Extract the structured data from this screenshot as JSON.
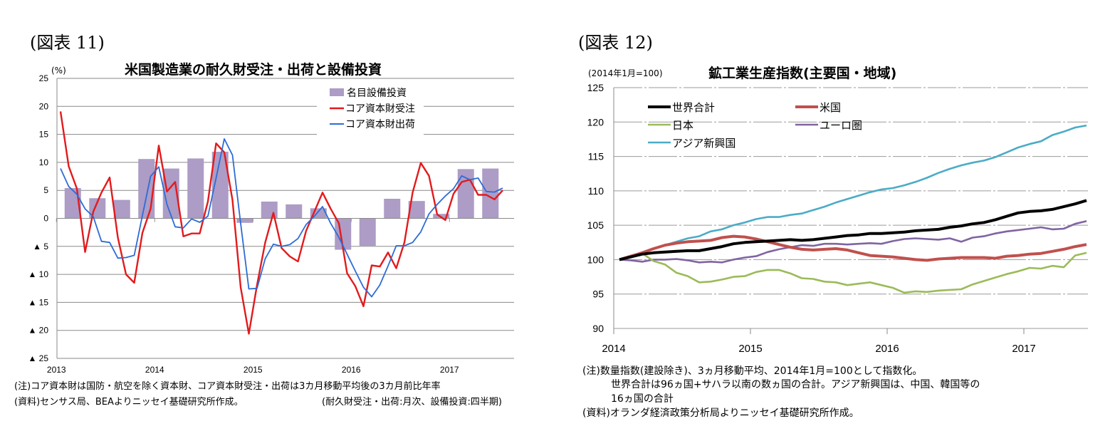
{
  "left": {
    "figure_label": "(図表 11)",
    "unit": "(%)",
    "notes": [
      "(注)コア資本財は国防・航空を除く資本財、コア資本財受注・出荷は3カ月移動平均後の3カ月前比年率",
      "(資料)センサス局、BEAよりニッセイ基礎研究所作成。"
    ],
    "frequency_note": "(耐久財受注・出荷:月次、設備投資:四半期)"
  },
  "right": {
    "figure_label": "(図表 12)",
    "unit": "(2014年1月=100)",
    "notes": [
      "(注)数量指数(建設除き)、3ヵ月移動平均、2014年1月=100として指数化。",
      "世界合計は96ヵ国+サハラ以南の数ヵ国の合計。アジア新興国は、中国、韓国等の",
      "16ヵ国の合計",
      "(資料)オランダ経済政策分析局よりニッセイ基礎研究所作成。"
    ]
  },
  "chart_data": [
    {
      "type": "bar+line",
      "title": "米国製造業の耐久財受注・出荷と設備投資",
      "ylabel": "(%)",
      "ylim": [
        -25,
        25
      ],
      "yticks": [
        25,
        20,
        15,
        10,
        5,
        0,
        -5,
        -10,
        -15,
        -20,
        -25
      ],
      "ytick_labels": [
        "25",
        "20",
        "15",
        "10",
        "5",
        "0",
        "▲ 5",
        "▲ 10",
        "▲ 15",
        "▲ 20",
        "▲ 25"
      ],
      "xtick_labels": [
        "2013",
        "2014",
        "2015",
        "2016",
        "2017"
      ],
      "grid": "horizontal",
      "legend_position": "top-right",
      "bars": {
        "name": "名目設備投資",
        "color": "#ac9cc6",
        "quarters": [
          "2013Q1",
          "2013Q2",
          "2013Q3",
          "2013Q4",
          "2014Q1",
          "2014Q2",
          "2014Q3",
          "2014Q4",
          "2015Q1",
          "2015Q2",
          "2015Q3",
          "2015Q4",
          "2016Q1",
          "2016Q2",
          "2016Q3",
          "2016Q4",
          "2017Q1",
          "2017Q2"
        ],
        "values": [
          5.4,
          3.6,
          3.3,
          10.6,
          8.9,
          10.7,
          11.9,
          -0.8,
          3.0,
          2.5,
          1.8,
          -5.6,
          -4.9,
          3.5,
          3.1,
          0.8,
          8.8,
          8.9
        ]
      },
      "x_start": "2013-01",
      "series": [
        {
          "name": "コア資本財受注",
          "color": "#e31a1c",
          "values": [
            19.1,
            9.3,
            5.3,
            -6.0,
            1.2,
            4.6,
            7.3,
            -3.4,
            -10.0,
            -11.5,
            -2.6,
            1.7,
            13.0,
            4.8,
            6.5,
            -3.2,
            -2.7,
            -2.7,
            3.0,
            13.4,
            11.8,
            3.3,
            -12.3,
            -20.6,
            -11.9,
            -4.3,
            1.0,
            -5.3,
            -6.8,
            -7.7,
            -2.2,
            1.2,
            4.6,
            1.7,
            -0.9,
            -9.8,
            -12.1,
            -15.7,
            -8.4,
            -8.6,
            -6.1,
            -8.9,
            -4.3,
            4.6,
            9.9,
            7.6,
            0.7,
            -0.3,
            4.4,
            6.5,
            6.9,
            4.2,
            4.2,
            3.4,
            5.0
          ]
        },
        {
          "name": "コア資本財出荷",
          "color": "#2d6cd6",
          "values": [
            8.9,
            5.7,
            4.3,
            1.7,
            0.3,
            -4.1,
            -4.3,
            -7.1,
            -7.0,
            -6.6,
            0.5,
            7.5,
            9.2,
            2.5,
            -1.5,
            -1.7,
            -0.1,
            -0.7,
            0.4,
            7.2,
            14.2,
            11.3,
            -0.9,
            -12.6,
            -12.5,
            -7.2,
            -4.6,
            -5.0,
            -4.7,
            -3.6,
            -1.1,
            0.4,
            2.1,
            -0.9,
            -3.4,
            -6.4,
            -9.4,
            -12.3,
            -14.0,
            -11.9,
            -8.5,
            -4.9,
            -4.9,
            -4.3,
            -2.4,
            0.8,
            2.5,
            4.0,
            5.3,
            7.6,
            6.9,
            7.2,
            4.8,
            4.7,
            5.4
          ]
        }
      ]
    },
    {
      "type": "line",
      "title": "鉱工業生産指数(主要国・地域)",
      "ylabel": "(2014年1月=100)",
      "ylim": [
        90,
        125
      ],
      "yticks": [
        90,
        95,
        100,
        105,
        110,
        115,
        120,
        125
      ],
      "xtick_labels": [
        "2014",
        "2015",
        "2016",
        "2017"
      ],
      "grid": "horizontal",
      "legend_position": "top-left",
      "x_start": "2014-01",
      "series": [
        {
          "name": "世界合計",
          "color": "#000000",
          "values": [
            100.0,
            100.4,
            100.8,
            101.0,
            101.1,
            101.2,
            101.3,
            101.3,
            101.6,
            101.9,
            102.3,
            102.5,
            102.6,
            102.7,
            102.8,
            102.9,
            102.8,
            102.9,
            103.1,
            103.3,
            103.5,
            103.6,
            103.8,
            103.8,
            103.9,
            104.0,
            104.2,
            104.3,
            104.4,
            104.7,
            104.9,
            105.2,
            105.4,
            105.8,
            106.3,
            106.8,
            107.0,
            107.1,
            107.3,
            107.7,
            108.1,
            108.6
          ]
        },
        {
          "name": "米国",
          "color": "#c0504d",
          "values": [
            100.0,
            100.5,
            101.0,
            101.6,
            102.1,
            102.4,
            102.6,
            102.7,
            102.8,
            103.2,
            103.4,
            103.3,
            103.0,
            102.6,
            102.2,
            101.8,
            101.5,
            101.4,
            101.5,
            101.6,
            101.4,
            101.0,
            100.6,
            100.5,
            100.4,
            100.2,
            100.0,
            99.9,
            100.1,
            100.2,
            100.3,
            100.3,
            100.3,
            100.2,
            100.5,
            100.6,
            100.8,
            100.9,
            101.2,
            101.5,
            101.9,
            102.2
          ]
        },
        {
          "name": "日本",
          "color": "#9bbb59",
          "values": [
            100.0,
            100.4,
            100.9,
            99.8,
            99.3,
            98.1,
            97.6,
            96.7,
            96.8,
            97.1,
            97.5,
            97.6,
            98.2,
            98.5,
            98.5,
            98.0,
            97.3,
            97.2,
            96.8,
            96.7,
            96.3,
            96.5,
            96.7,
            96.3,
            95.9,
            95.2,
            95.4,
            95.3,
            95.5,
            95.6,
            95.7,
            96.4,
            96.9,
            97.4,
            97.9,
            98.3,
            98.8,
            98.7,
            99.1,
            98.9,
            100.6,
            101.0
          ]
        },
        {
          "name": "ユーロ圏",
          "color": "#8064a2",
          "values": [
            100.0,
            99.9,
            99.7,
            100.0,
            100.0,
            100.1,
            99.9,
            99.6,
            99.7,
            99.6,
            100.0,
            100.3,
            100.5,
            101.1,
            101.5,
            101.8,
            102.1,
            102.0,
            102.3,
            102.3,
            102.2,
            102.3,
            102.4,
            102.3,
            102.7,
            103.0,
            103.1,
            103.0,
            102.9,
            103.1,
            102.6,
            103.2,
            103.4,
            103.8,
            104.1,
            104.3,
            104.5,
            104.7,
            104.4,
            104.5,
            105.2,
            105.6
          ]
        },
        {
          "name": "アジア新興国",
          "color": "#4bacc6",
          "values": [
            100.0,
            100.5,
            101.0,
            101.6,
            102.1,
            102.6,
            103.1,
            103.4,
            104.1,
            104.4,
            105.0,
            105.4,
            105.9,
            106.2,
            106.2,
            106.5,
            106.7,
            107.2,
            107.7,
            108.3,
            108.8,
            109.3,
            109.8,
            110.2,
            110.4,
            110.8,
            111.3,
            111.9,
            112.6,
            113.2,
            113.7,
            114.1,
            114.4,
            114.9,
            115.6,
            116.3,
            116.8,
            117.2,
            118.1,
            118.6,
            119.2,
            119.5
          ]
        }
      ]
    }
  ]
}
